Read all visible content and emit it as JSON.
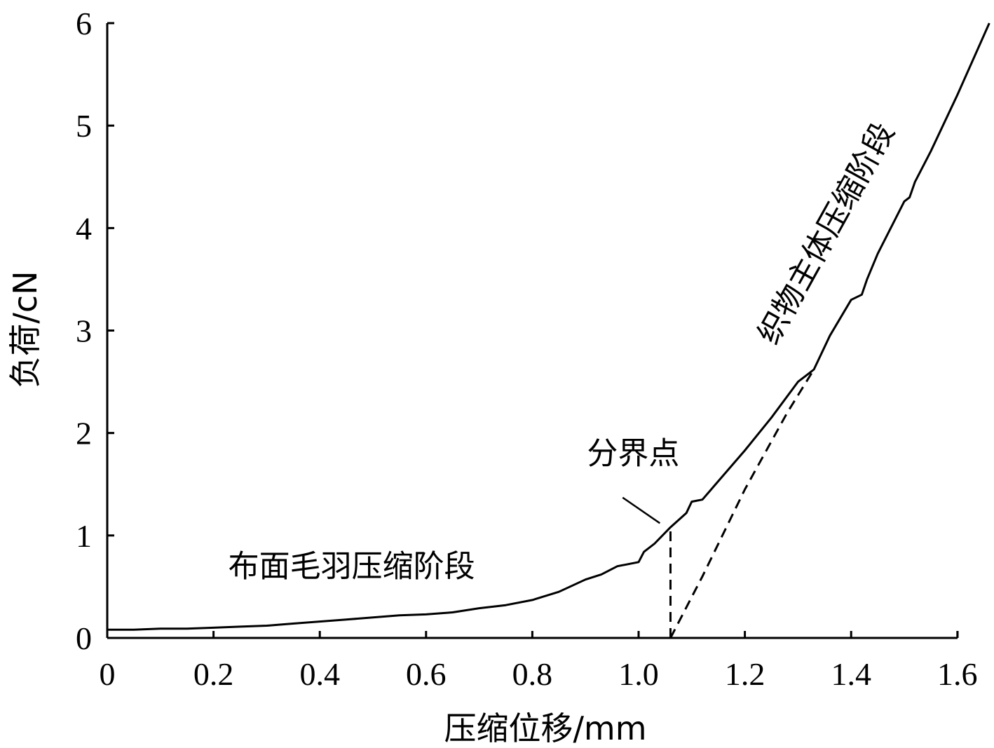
{
  "chart_data": {
    "type": "line",
    "title": "",
    "xlabel": "压缩位移/mm",
    "ylabel": "负荷/cN",
    "xlim": [
      0,
      1.66
    ],
    "ylim": [
      0,
      6
    ],
    "x_ticks": [
      0,
      0.2,
      0.4,
      0.6,
      0.8,
      1.0,
      1.2,
      1.4,
      1.6
    ],
    "x_tick_labels": [
      "0",
      "0.2",
      "0.4",
      "0.6",
      "0.8",
      "1.0",
      "1.2",
      "1.4",
      "1.6"
    ],
    "y_ticks": [
      0,
      1,
      2,
      3,
      4,
      5,
      6
    ],
    "y_tick_labels": [
      "0",
      "1",
      "2",
      "3",
      "4",
      "5",
      "6"
    ],
    "grid": false,
    "series": [
      {
        "style": "solid",
        "x": [
          0,
          0.05,
          0.1,
          0.15,
          0.2,
          0.25,
          0.3,
          0.35,
          0.4,
          0.45,
          0.5,
          0.55,
          0.6,
          0.65,
          0.7,
          0.75,
          0.8,
          0.85,
          0.9,
          0.93,
          0.96,
          0.99,
          1.0,
          1.01,
          1.03,
          1.06,
          1.09,
          1.1,
          1.11,
          1.12,
          1.15,
          1.2,
          1.25,
          1.3,
          1.32,
          1.33,
          1.36,
          1.4,
          1.42,
          1.43,
          1.45,
          1.5,
          1.51,
          1.52,
          1.55,
          1.6,
          1.66
        ],
        "y": [
          0.08,
          0.08,
          0.09,
          0.09,
          0.1,
          0.11,
          0.12,
          0.14,
          0.16,
          0.18,
          0.2,
          0.22,
          0.23,
          0.25,
          0.29,
          0.32,
          0.37,
          0.45,
          0.57,
          0.62,
          0.7,
          0.73,
          0.74,
          0.84,
          0.92,
          1.08,
          1.22,
          1.33,
          1.34,
          1.35,
          1.53,
          1.83,
          2.15,
          2.5,
          2.58,
          2.62,
          2.95,
          3.3,
          3.35,
          3.5,
          3.75,
          4.26,
          4.3,
          4.45,
          4.75,
          5.3,
          6.0
        ]
      },
      {
        "style": "dashed",
        "x": [
          1.06,
          1.12,
          1.2,
          1.28,
          1.33
        ],
        "y": [
          0.0,
          0.6,
          1.45,
          2.2,
          2.62
        ]
      }
    ],
    "divider_line": {
      "x": 1.06,
      "y": [
        0,
        1.08
      ]
    },
    "annotations": [
      {
        "text": "分界点",
        "x": 0.99,
        "y": 1.7
      },
      {
        "text": "布面毛羽压缩阶段",
        "x": 0.46,
        "y": 0.6
      },
      {
        "text": "织物主体压缩阶段",
        "x": 1.37,
        "y": 3.9
      }
    ],
    "pointer": {
      "x": [
        0.97,
        1.04
      ],
      "y": [
        1.37,
        1.12
      ]
    }
  }
}
